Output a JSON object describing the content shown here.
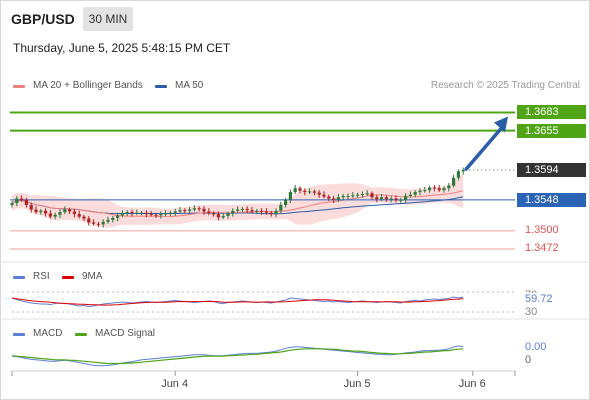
{
  "header": {
    "symbol": "GBP/USD",
    "timeframe": "30 MIN",
    "datetime": "Thursday, June 5, 2025 5:48:15 PM CET",
    "credit": "Research © 2025 Trading Central"
  },
  "legend": {
    "ma20": "MA 20 + Bollinger Bands",
    "ma50": "MA 50",
    "rsi": "RSI",
    "rsi_ma": "9MA",
    "macd": "MACD",
    "macd_signal": "MACD Signal"
  },
  "colors": {
    "green": "#4fa516",
    "blue": "#2b63b5",
    "red": "#e35151",
    "dark": "#333333",
    "candle_up": "#2d7a3a",
    "candle_down": "#b22222",
    "band_fill": "#f9d0d0",
    "ma20": "#f08080",
    "ma50": "#2b5ea7",
    "arrow": "#2b5ea7"
  },
  "chart_data": [
    {
      "type": "candlestick",
      "ylim": [
        1.3455,
        1.371
      ],
      "x_ticks": [
        "Jun 4",
        "Jun 5",
        "Jun 6"
      ],
      "x_tick_index": [
        34,
        72,
        96
      ],
      "closes": [
        1.3543,
        1.355,
        1.3548,
        1.354,
        1.3533,
        1.3529,
        1.3531,
        1.3527,
        1.3522,
        1.3525,
        1.3529,
        1.3533,
        1.353,
        1.3526,
        1.3522,
        1.3519,
        1.3513,
        1.3511,
        1.351,
        1.3514,
        1.3517,
        1.352,
        1.3524,
        1.3527,
        1.3529,
        1.3527,
        1.3528,
        1.3528,
        1.3526,
        1.3525,
        1.3524,
        1.3526,
        1.3527,
        1.3528,
        1.353,
        1.3532,
        1.3531,
        1.3533,
        1.3535,
        1.3534,
        1.353,
        1.3527,
        1.3526,
        1.3521,
        1.3523,
        1.3527,
        1.3531,
        1.3533,
        1.3534,
        1.3532,
        1.353,
        1.3531,
        1.353,
        1.3528,
        1.3526,
        1.3531,
        1.354,
        1.3548,
        1.356,
        1.3566,
        1.3562,
        1.356,
        1.3561,
        1.3559,
        1.3556,
        1.3553,
        1.355,
        1.3548,
        1.3552,
        1.3554,
        1.3554,
        1.3555,
        1.3556,
        1.3557,
        1.3558,
        1.3552,
        1.3549,
        1.3552,
        1.3549,
        1.355,
        1.3547,
        1.3548,
        1.3554,
        1.3556,
        1.356,
        1.3562,
        1.3563,
        1.3567,
        1.3566,
        1.3563,
        1.3566,
        1.357,
        1.3582,
        1.3592,
        1.3594
      ],
      "support_resistance": [
        {
          "label": "1.3683",
          "value": 1.3683,
          "style": "green-box"
        },
        {
          "label": "1.3655",
          "value": 1.3655,
          "style": "green-box"
        },
        {
          "label": "1.3594",
          "value": 1.3594,
          "style": "dark-box"
        },
        {
          "label": "1.3548",
          "value": 1.3548,
          "style": "blue-box"
        },
        {
          "label": "1.3500",
          "value": 1.35,
          "style": "red-text"
        },
        {
          "label": "1.3472",
          "value": 1.3472,
          "style": "red-text"
        }
      ]
    },
    {
      "type": "line",
      "name": "RSI",
      "ylim": [
        20,
        80
      ],
      "levels": [
        30,
        70
      ],
      "level_labels": [
        "70",
        "30"
      ],
      "current_label": "59.72",
      "rsi": [
        58,
        55,
        52,
        50,
        48,
        47,
        46,
        46,
        45,
        47,
        48,
        47,
        46,
        44,
        42,
        43,
        41,
        42,
        44,
        46,
        47,
        48,
        49,
        50,
        49,
        48,
        49,
        50,
        51,
        50,
        49,
        50,
        51,
        52,
        53,
        52,
        51,
        50,
        49,
        50,
        51,
        52,
        51,
        48,
        47,
        49,
        50,
        51,
        52,
        51,
        50,
        49,
        50,
        49,
        48,
        50,
        52,
        54,
        58,
        57,
        56,
        55,
        54,
        53,
        52,
        51,
        52,
        50,
        51,
        50,
        49,
        50,
        51,
        52,
        51,
        50,
        49,
        50,
        51,
        50,
        49,
        48,
        51,
        52,
        53,
        52,
        54,
        55,
        56,
        55,
        56,
        57,
        60,
        58,
        59.72
      ]
    },
    {
      "type": "line",
      "name": "MACD",
      "ylim": [
        -0.0035,
        0.003
      ],
      "zero_label": "0",
      "current_label": "0.00",
      "macd": [
        -0.0005,
        -0.0006,
        -0.0008,
        -0.001,
        -0.0012,
        -0.0013,
        -0.0014,
        -0.0015,
        -0.0016,
        -0.0016,
        -0.0015,
        -0.0014,
        -0.0015,
        -0.0017,
        -0.0019,
        -0.0021,
        -0.0023,
        -0.0025,
        -0.0026,
        -0.0026,
        -0.0025,
        -0.0024,
        -0.0022,
        -0.002,
        -0.0018,
        -0.0017,
        -0.0015,
        -0.0013,
        -0.0012,
        -0.0011,
        -0.001,
        -0.0009,
        -0.0008,
        -0.0007,
        -0.0006,
        -0.0005,
        -0.0004,
        -0.0003,
        -0.0002,
        -0.0002,
        -0.0002,
        -0.0003,
        -0.0004,
        -0.0004,
        -0.0004,
        -0.0003,
        -0.0002,
        -0.0001,
        0.0,
        0.0001,
        0.0001,
        0.0001,
        0.0002,
        0.0003,
        0.0004,
        0.0006,
        0.0009,
        0.0012,
        0.0014,
        0.0015,
        0.0015,
        0.0014,
        0.0013,
        0.0012,
        0.0011,
        0.001,
        0.0009,
        0.0008,
        0.0007,
        0.0006,
        0.0005,
        0.0004,
        0.0003,
        0.0002,
        0.0001,
        0.0,
        -0.0001,
        -0.0001,
        -0.0002,
        -0.0002,
        -0.0001,
        0.0,
        0.0002,
        0.0003,
        0.0004,
        0.0006,
        0.0007,
        0.0007,
        0.0008,
        0.0008,
        0.0009,
        0.0011,
        0.0015,
        0.0017,
        0.0016
      ],
      "signal": [
        -0.0004,
        -0.0005,
        -0.0006,
        -0.0007,
        -0.0008,
        -0.0009,
        -0.001,
        -0.0011,
        -0.0012,
        -0.0013,
        -0.0013,
        -0.0013,
        -0.0014,
        -0.0014,
        -0.0015,
        -0.0016,
        -0.0017,
        -0.0018,
        -0.0019,
        -0.002,
        -0.0021,
        -0.0021,
        -0.0021,
        -0.0021,
        -0.002,
        -0.002,
        -0.0019,
        -0.0018,
        -0.0017,
        -0.0016,
        -0.0015,
        -0.0014,
        -0.0013,
        -0.0012,
        -0.0011,
        -0.001,
        -0.0009,
        -0.0008,
        -0.0007,
        -0.0006,
        -0.0005,
        -0.0005,
        -0.0005,
        -0.0005,
        -0.0005,
        -0.0004,
        -0.0004,
        -0.0003,
        -0.0003,
        -0.0002,
        -0.0001,
        -0.0001,
        0.0,
        0.0001,
        0.0002,
        0.0003,
        0.0004,
        0.0006,
        0.0008,
        0.0009,
        0.001,
        0.0011,
        0.0011,
        0.0011,
        0.0011,
        0.0011,
        0.001,
        0.001,
        0.0009,
        0.0008,
        0.0007,
        0.0006,
        0.0006,
        0.0005,
        0.0004,
        0.0003,
        0.0002,
        0.0001,
        0.0001,
        0.0,
        0.0,
        0.0,
        0.0001,
        0.0001,
        0.0002,
        0.0003,
        0.0004,
        0.0004,
        0.0005,
        0.0006,
        0.0007,
        0.0007,
        0.0009,
        0.001,
        0.0011
      ]
    }
  ]
}
